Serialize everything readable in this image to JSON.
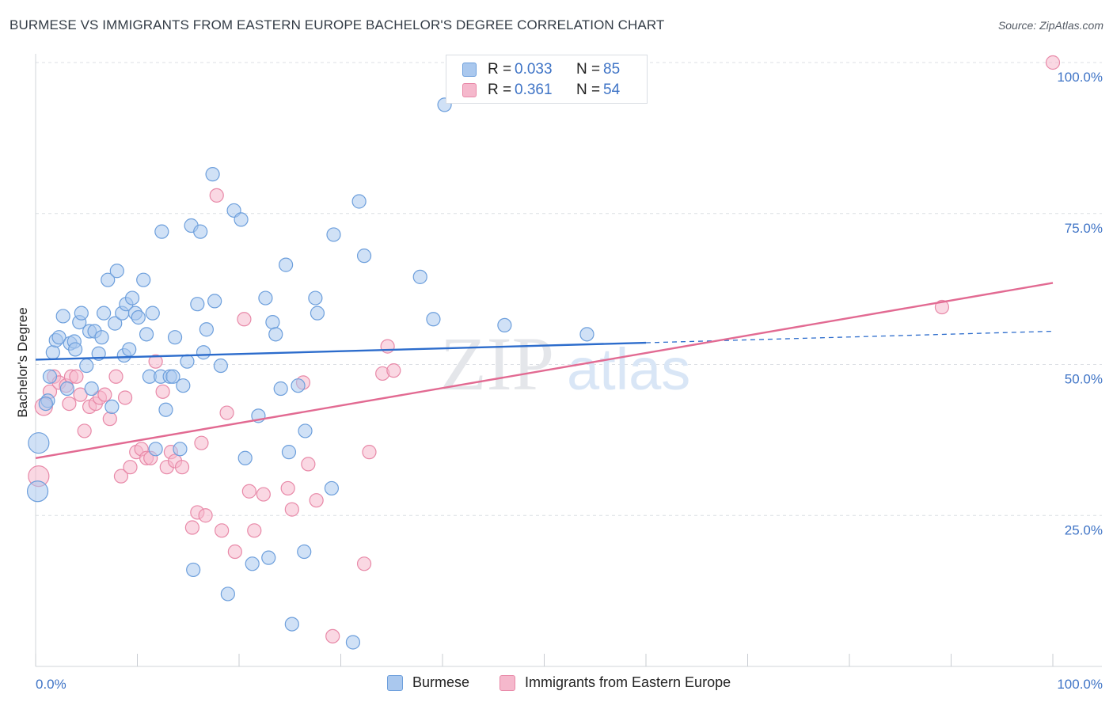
{
  "title": "BURMESE VS IMMIGRANTS FROM EASTERN EUROPE BACHELOR'S DEGREE CORRELATION CHART",
  "source": "Source: ZipAtlas.com",
  "watermark": {
    "zip": "ZIP",
    "atlas": "atlas"
  },
  "colors": {
    "burmese_fill": "#aac8ee",
    "burmese_stroke": "#6d9fdc",
    "burmese_line": "#2c6ccc",
    "eastern_fill": "#f5b8cc",
    "eastern_stroke": "#e889a8",
    "eastern_line": "#e26a92",
    "tick_text": "#3f74c6",
    "grid": "#dcdfe4"
  },
  "legend_top": {
    "rows": [
      {
        "r_label": "R =",
        "r_value": "0.033",
        "n_label": "N =",
        "n_value": "85"
      },
      {
        "r_label": "R =",
        "r_value": "0.361",
        "n_label": "N =",
        "n_value": "54"
      }
    ]
  },
  "legend_bottom": {
    "items": [
      {
        "label": "Burmese"
      },
      {
        "label": "Immigrants from Eastern Europe"
      }
    ]
  },
  "chart_data": {
    "type": "scatter",
    "title": "BURMESE VS IMMIGRANTS FROM EASTERN EUROPE BACHELOR'S DEGREE CORRELATION CHART",
    "xlabel": "",
    "ylabel": "Bachelor's Degree",
    "xlim": [
      0,
      100
    ],
    "ylim": [
      0,
      100
    ],
    "x_tick_labels": [
      "0.0%",
      "100.0%"
    ],
    "y_ticks": [
      {
        "value": 25,
        "label": "25.0%"
      },
      {
        "value": 50,
        "label": "50.0%"
      },
      {
        "value": 75,
        "label": "75.0%"
      },
      {
        "value": 100,
        "label": "100.0%"
      }
    ],
    "grid": true,
    "legend_position": "top-center",
    "series": [
      {
        "name": "Burmese",
        "R": 0.033,
        "N": 85,
        "trend": {
          "x": [
            0,
            60
          ],
          "y": [
            50.8,
            53.6
          ],
          "dashed_to": [
            100,
            55.5
          ]
        },
        "points": [
          {
            "x": 0.3,
            "y": 37.0,
            "s": 3
          },
          {
            "x": 0.2,
            "y": 29.0,
            "s": 3
          },
          {
            "x": 1.2,
            "y": 44.0,
            "s": 1
          },
          {
            "x": 1.4,
            "y": 48.0,
            "s": 1
          },
          {
            "x": 1.7,
            "y": 52.0,
            "s": 1
          },
          {
            "x": 2.0,
            "y": 54.0,
            "s": 1
          },
          {
            "x": 2.3,
            "y": 54.5,
            "s": 1
          },
          {
            "x": 2.7,
            "y": 58.0,
            "s": 1
          },
          {
            "x": 3.1,
            "y": 46.0,
            "s": 1
          },
          {
            "x": 3.4,
            "y": 53.5,
            "s": 1
          },
          {
            "x": 3.8,
            "y": 53.8,
            "s": 1
          },
          {
            "x": 3.9,
            "y": 52.5,
            "s": 1
          },
          {
            "x": 4.3,
            "y": 57.0,
            "s": 1
          },
          {
            "x": 4.5,
            "y": 58.5,
            "s": 1
          },
          {
            "x": 5.0,
            "y": 49.8,
            "s": 1
          },
          {
            "x": 5.3,
            "y": 55.5,
            "s": 1
          },
          {
            "x": 5.5,
            "y": 46.0,
            "s": 1
          },
          {
            "x": 5.8,
            "y": 55.5,
            "s": 1
          },
          {
            "x": 6.2,
            "y": 51.8,
            "s": 1
          },
          {
            "x": 6.5,
            "y": 54.5,
            "s": 1
          },
          {
            "x": 6.7,
            "y": 58.5,
            "s": 1
          },
          {
            "x": 7.1,
            "y": 64.0,
            "s": 1
          },
          {
            "x": 7.5,
            "y": 43.0,
            "s": 1
          },
          {
            "x": 7.8,
            "y": 56.8,
            "s": 1
          },
          {
            "x": 8.0,
            "y": 65.5,
            "s": 1
          },
          {
            "x": 8.5,
            "y": 58.5,
            "s": 1
          },
          {
            "x": 8.7,
            "y": 51.5,
            "s": 1
          },
          {
            "x": 8.9,
            "y": 60.0,
            "s": 1
          },
          {
            "x": 9.2,
            "y": 52.5,
            "s": 1
          },
          {
            "x": 9.5,
            "y": 61.0,
            "s": 1
          },
          {
            "x": 9.8,
            "y": 58.5,
            "s": 1
          },
          {
            "x": 10.1,
            "y": 57.8,
            "s": 1
          },
          {
            "x": 10.6,
            "y": 64.0,
            "s": 1
          },
          {
            "x": 10.9,
            "y": 55.0,
            "s": 1
          },
          {
            "x": 11.2,
            "y": 48.0,
            "s": 1
          },
          {
            "x": 11.5,
            "y": 58.5,
            "s": 1
          },
          {
            "x": 11.8,
            "y": 36.0,
            "s": 1
          },
          {
            "x": 12.3,
            "y": 48.0,
            "s": 1
          },
          {
            "x": 12.4,
            "y": 72.0,
            "s": 1
          },
          {
            "x": 12.8,
            "y": 42.5,
            "s": 1
          },
          {
            "x": 13.2,
            "y": 48.0,
            "s": 1
          },
          {
            "x": 13.5,
            "y": 48.0,
            "s": 1
          },
          {
            "x": 13.7,
            "y": 54.5,
            "s": 1
          },
          {
            "x": 14.2,
            "y": 36.0,
            "s": 1
          },
          {
            "x": 14.5,
            "y": 46.5,
            "s": 1
          },
          {
            "x": 14.9,
            "y": 50.5,
            "s": 1
          },
          {
            "x": 15.3,
            "y": 73.0,
            "s": 1
          },
          {
            "x": 15.5,
            "y": 16.0,
            "s": 1
          },
          {
            "x": 15.9,
            "y": 60.0,
            "s": 1
          },
          {
            "x": 16.2,
            "y": 72.0,
            "s": 1
          },
          {
            "x": 16.5,
            "y": 52.0,
            "s": 1
          },
          {
            "x": 16.8,
            "y": 55.8,
            "s": 1
          },
          {
            "x": 17.4,
            "y": 81.5,
            "s": 1
          },
          {
            "x": 17.6,
            "y": 60.5,
            "s": 1
          },
          {
            "x": 18.2,
            "y": 49.8,
            "s": 1
          },
          {
            "x": 18.9,
            "y": 12.0,
            "s": 1
          },
          {
            "x": 19.5,
            "y": 75.5,
            "s": 1
          },
          {
            "x": 20.2,
            "y": 74.0,
            "s": 1
          },
          {
            "x": 20.6,
            "y": 34.5,
            "s": 1
          },
          {
            "x": 21.3,
            "y": 17.0,
            "s": 1
          },
          {
            "x": 21.9,
            "y": 41.5,
            "s": 1
          },
          {
            "x": 22.6,
            "y": 61.0,
            "s": 1
          },
          {
            "x": 22.9,
            "y": 18.0,
            "s": 1
          },
          {
            "x": 23.3,
            "y": 57.0,
            "s": 1
          },
          {
            "x": 23.6,
            "y": 55.0,
            "s": 1
          },
          {
            "x": 24.1,
            "y": 46.0,
            "s": 1
          },
          {
            "x": 24.6,
            "y": 66.5,
            "s": 1
          },
          {
            "x": 24.9,
            "y": 35.5,
            "s": 1
          },
          {
            "x": 25.2,
            "y": 7.0,
            "s": 1
          },
          {
            "x": 25.8,
            "y": 46.5,
            "s": 1
          },
          {
            "x": 26.5,
            "y": 39.0,
            "s": 1
          },
          {
            "x": 26.4,
            "y": 19.0,
            "s": 1
          },
          {
            "x": 27.5,
            "y": 61.0,
            "s": 1
          },
          {
            "x": 27.7,
            "y": 58.5,
            "s": 1
          },
          {
            "x": 29.1,
            "y": 29.5,
            "s": 1
          },
          {
            "x": 29.3,
            "y": 71.5,
            "s": 1
          },
          {
            "x": 31.2,
            "y": 4.0,
            "s": 1
          },
          {
            "x": 31.8,
            "y": 77.0,
            "s": 1
          },
          {
            "x": 32.3,
            "y": 68.0,
            "s": 1
          },
          {
            "x": 37.8,
            "y": 64.5,
            "s": 1
          },
          {
            "x": 39.1,
            "y": 57.5,
            "s": 1
          },
          {
            "x": 40.2,
            "y": 93.0,
            "s": 1
          },
          {
            "x": 46.1,
            "y": 56.5,
            "s": 1
          },
          {
            "x": 54.2,
            "y": 55.0,
            "s": 1
          },
          {
            "x": 1.0,
            "y": 43.5,
            "s": 1
          }
        ]
      },
      {
        "name": "Immigrants from Eastern Europe",
        "R": 0.361,
        "N": 54,
        "trend": {
          "x": [
            0,
            100
          ],
          "y": [
            34.5,
            63.5
          ]
        },
        "points": [
          {
            "x": 0.3,
            "y": 31.5,
            "s": 3
          },
          {
            "x": 0.8,
            "y": 43.0,
            "s": 2
          },
          {
            "x": 1.4,
            "y": 45.5,
            "s": 1
          },
          {
            "x": 1.8,
            "y": 48.0,
            "s": 1
          },
          {
            "x": 2.3,
            "y": 47.0,
            "s": 1
          },
          {
            "x": 3.0,
            "y": 46.5,
            "s": 1
          },
          {
            "x": 3.5,
            "y": 48.0,
            "s": 1
          },
          {
            "x": 3.3,
            "y": 43.5,
            "s": 1
          },
          {
            "x": 4.0,
            "y": 48.0,
            "s": 1
          },
          {
            "x": 4.4,
            "y": 45.0,
            "s": 1
          },
          {
            "x": 4.8,
            "y": 39.0,
            "s": 1
          },
          {
            "x": 5.3,
            "y": 43.0,
            "s": 1
          },
          {
            "x": 5.9,
            "y": 43.5,
            "s": 1
          },
          {
            "x": 6.3,
            "y": 44.5,
            "s": 1
          },
          {
            "x": 6.8,
            "y": 45.0,
            "s": 1
          },
          {
            "x": 7.3,
            "y": 41.0,
            "s": 1
          },
          {
            "x": 7.9,
            "y": 48.0,
            "s": 1
          },
          {
            "x": 8.4,
            "y": 31.5,
            "s": 1
          },
          {
            "x": 8.8,
            "y": 44.5,
            "s": 1
          },
          {
            "x": 9.3,
            "y": 33.0,
            "s": 1
          },
          {
            "x": 9.9,
            "y": 35.5,
            "s": 1
          },
          {
            "x": 10.4,
            "y": 36.0,
            "s": 1
          },
          {
            "x": 10.9,
            "y": 34.5,
            "s": 1
          },
          {
            "x": 11.3,
            "y": 34.5,
            "s": 1
          },
          {
            "x": 11.8,
            "y": 50.5,
            "s": 1
          },
          {
            "x": 12.5,
            "y": 45.5,
            "s": 1
          },
          {
            "x": 12.9,
            "y": 33.0,
            "s": 1
          },
          {
            "x": 13.3,
            "y": 35.5,
            "s": 1
          },
          {
            "x": 13.7,
            "y": 34.0,
            "s": 1
          },
          {
            "x": 14.4,
            "y": 33.0,
            "s": 1
          },
          {
            "x": 15.4,
            "y": 23.0,
            "s": 1
          },
          {
            "x": 15.9,
            "y": 25.5,
            "s": 1
          },
          {
            "x": 16.3,
            "y": 37.0,
            "s": 1
          },
          {
            "x": 16.7,
            "y": 25.0,
            "s": 1
          },
          {
            "x": 17.8,
            "y": 78.0,
            "s": 1
          },
          {
            "x": 18.3,
            "y": 22.5,
            "s": 1
          },
          {
            "x": 18.8,
            "y": 42.0,
            "s": 1
          },
          {
            "x": 19.6,
            "y": 19.0,
            "s": 1
          },
          {
            "x": 20.5,
            "y": 57.5,
            "s": 1
          },
          {
            "x": 21.0,
            "y": 29.0,
            "s": 1
          },
          {
            "x": 21.5,
            "y": 22.5,
            "s": 1
          },
          {
            "x": 22.4,
            "y": 28.5,
            "s": 1
          },
          {
            "x": 24.8,
            "y": 29.5,
            "s": 1
          },
          {
            "x": 25.2,
            "y": 26.0,
            "s": 1
          },
          {
            "x": 26.3,
            "y": 47.0,
            "s": 1
          },
          {
            "x": 26.8,
            "y": 33.5,
            "s": 1
          },
          {
            "x": 27.6,
            "y": 27.5,
            "s": 1
          },
          {
            "x": 29.2,
            "y": 5.0,
            "s": 1
          },
          {
            "x": 32.3,
            "y": 17.0,
            "s": 1
          },
          {
            "x": 32.8,
            "y": 35.5,
            "s": 1
          },
          {
            "x": 34.1,
            "y": 48.5,
            "s": 1
          },
          {
            "x": 34.6,
            "y": 53.0,
            "s": 1
          },
          {
            "x": 35.2,
            "y": 49.0,
            "s": 1
          },
          {
            "x": 89.1,
            "y": 59.5,
            "s": 1
          },
          {
            "x": 100.0,
            "y": 100.0,
            "s": 1
          }
        ]
      }
    ]
  }
}
